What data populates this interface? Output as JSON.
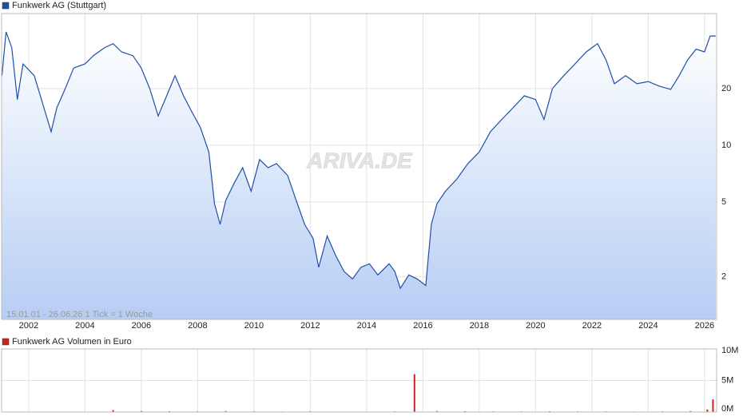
{
  "chart_data": [
    {
      "type": "line",
      "log_scale": true,
      "area": true,
      "grid": true,
      "note": "15.01.01 - 26.06.26   1 Tick = 1 Woche",
      "watermark": "ARIVA.DE",
      "x": [
        2001.05,
        2001.2,
        2001.4,
        2001.6,
        2001.8,
        2002.2,
        2002.5,
        2002.8,
        2003.0,
        2003.3,
        2003.6,
        2004.0,
        2004.3,
        2004.7,
        2005.0,
        2005.3,
        2005.7,
        2006.0,
        2006.3,
        2006.6,
        2006.9,
        2007.2,
        2007.5,
        2007.8,
        2008.1,
        2008.4,
        2008.6,
        2008.8,
        2009.0,
        2009.3,
        2009.6,
        2009.9,
        2010.2,
        2010.5,
        2010.8,
        2011.2,
        2011.5,
        2011.8,
        2012.1,
        2012.3,
        2012.6,
        2012.9,
        2013.2,
        2013.5,
        2013.8,
        2014.1,
        2014.4,
        2014.8,
        2015.0,
        2015.2,
        2015.5,
        2015.8,
        2016.1,
        2016.3,
        2016.5,
        2016.8,
        2017.2,
        2017.6,
        2018.0,
        2018.4,
        2018.8,
        2019.2,
        2019.6,
        2020.0,
        2020.3,
        2020.6,
        2021.0,
        2021.4,
        2021.8,
        2022.2,
        2022.5,
        2022.8,
        2023.2,
        2023.6,
        2024.0,
        2024.4,
        2024.8,
        2025.1,
        2025.4,
        2025.7,
        2026.0,
        2026.2,
        2026.4
      ],
      "series": [
        {
          "name": "Funkwerk AG (Stuttgart)",
          "color": "#1f4fa8",
          "values": [
            23.4,
            40,
            33,
            17.5,
            27,
            23.4,
            16.6,
            11.8,
            15.8,
            20,
            25.7,
            27,
            29.9,
            33,
            34.6,
            31.3,
            29.9,
            25.7,
            20,
            14.3,
            18.3,
            23.4,
            18.3,
            15,
            12.4,
            9.2,
            4.9,
            3.8,
            5.1,
            6.3,
            7.6,
            5.7,
            8.4,
            7.6,
            8,
            6.9,
            5.1,
            3.8,
            3.2,
            2.25,
            3.3,
            2.6,
            2.14,
            1.95,
            2.25,
            2.35,
            2.05,
            2.35,
            2.14,
            1.74,
            2.05,
            1.95,
            1.8,
            3.8,
            4.9,
            5.7,
            6.6,
            8,
            9.2,
            11.8,
            13.7,
            15.8,
            18.3,
            17.5,
            13.7,
            20,
            23.4,
            27,
            31.3,
            34.6,
            28.4,
            21.2,
            23.4,
            21.2,
            21.8,
            20.6,
            19.8,
            23.4,
            28.4,
            32.4,
            31.3,
            38,
            38
          ]
        }
      ],
      "xlim": [
        2001.04,
        2026.43
      ],
      "xticks": [
        2002,
        2004,
        2006,
        2008,
        2010,
        2012,
        2014,
        2016,
        2018,
        2020,
        2022,
        2024,
        2026
      ],
      "ylim": [
        1.19,
        50
      ],
      "yticks": [
        2,
        5,
        10,
        20
      ]
    },
    {
      "type": "bar",
      "x": [
        2005.0,
        2006.0,
        2007.0,
        2008.0,
        2009.0,
        2010.0,
        2011.0,
        2012.0,
        2013.0,
        2014.0,
        2015.0,
        2015.7,
        2016.5,
        2017.5,
        2018.5,
        2019.5,
        2020.5,
        2021.5,
        2022.5,
        2023.5,
        2024.5,
        2025.5,
        2026.1,
        2026.3
      ],
      "series": [
        {
          "name": "Funkwerk AG Volumen in Euro",
          "color": "#cc2222",
          "values": [
            300000,
            150000,
            120000,
            100000,
            150000,
            100000,
            80000,
            100000,
            80000,
            80000,
            100000,
            6000000,
            150000,
            120000,
            100000,
            100000,
            120000,
            100000,
            100000,
            80000,
            100000,
            150000,
            400000,
            2000000
          ]
        }
      ],
      "xlim": [
        2001.04,
        2026.43
      ],
      "xticks": [
        2002,
        2004,
        2006,
        2008,
        2010,
        2012,
        2014,
        2016,
        2018,
        2020,
        2022,
        2024,
        2026
      ],
      "ylim": [
        0,
        10000000
      ],
      "yticks": [
        {
          "value": 0,
          "label": "0M"
        },
        {
          "value": 5000000,
          "label": "5M"
        },
        {
          "value": 10000000,
          "label": "10M"
        }
      ]
    }
  ]
}
